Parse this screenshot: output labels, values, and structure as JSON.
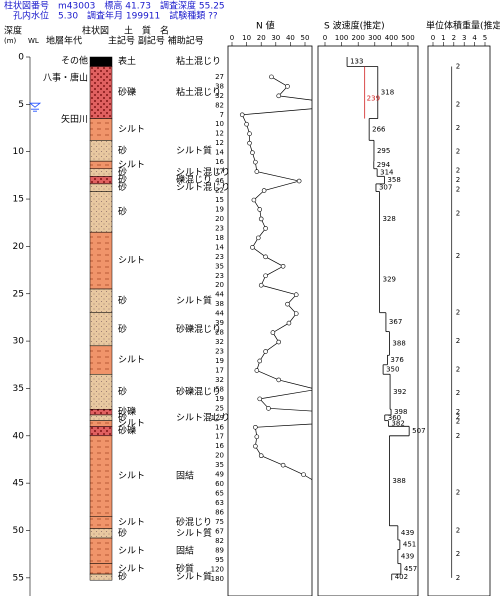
{
  "header": {
    "line1": "柱状図番号　m43003　標高 41.73　調査深度 55.25",
    "line2": "　孔内水位　5.30　調査年月 199911　試験種類 ??"
  },
  "columns": {
    "depth": "深度",
    "unit": "(m)",
    "wl": "WL",
    "age": "地層年代",
    "column": "柱状図",
    "soil": "土　質　名",
    "symbols": "主記号 副記号 補助記号",
    "n": "N 値",
    "vs": "S 波速度(推定)",
    "density": "単位体積重量(推定)"
  },
  "depth_ticks": [
    0,
    5,
    10,
    15,
    20,
    25,
    30,
    35,
    40,
    45,
    50,
    55
  ],
  "water_level": 5.3,
  "formations": [
    {
      "name": "その他",
      "depth": 0.4
    },
    {
      "name": "八事・唐山",
      "depth": 2.2
    },
    {
      "name": "矢田川",
      "depth": 6.6
    }
  ],
  "layers": [
    {
      "top": 0,
      "bottom": 1,
      "pattern": "topsoil",
      "main": "表土",
      "sub": "粘土混じり"
    },
    {
      "top": 1,
      "bottom": 6.5,
      "pattern": "gravel",
      "main": "砂礫",
      "sub": "粘土混じり"
    },
    {
      "top": 6.5,
      "bottom": 8.8,
      "pattern": "silt",
      "main": "シルト",
      "sub": null
    },
    {
      "top": 8.8,
      "bottom": 11,
      "pattern": "sand",
      "main": "砂",
      "sub": "シルト質"
    },
    {
      "top": 11,
      "bottom": 11.8,
      "pattern": "silt",
      "main": "シルト",
      "sub": null
    },
    {
      "top": 11.8,
      "bottom": 12.6,
      "pattern": "sand",
      "main": "砂",
      "sub": "シルト混じり"
    },
    {
      "top": 12.6,
      "bottom": 13.4,
      "pattern": "gravel",
      "main": "砂",
      "sub": "礫混じり"
    },
    {
      "top": 13.4,
      "bottom": 14.2,
      "pattern": "sand",
      "main": "砂",
      "sub": "シルト混じり"
    },
    {
      "top": 14.2,
      "bottom": 18.5,
      "pattern": "sand",
      "main": "砂",
      "sub": null
    },
    {
      "top": 18.5,
      "bottom": 24.5,
      "pattern": "silt",
      "main": "シルト",
      "sub": null
    },
    {
      "top": 24.5,
      "bottom": 27,
      "pattern": "sand",
      "main": "砂",
      "sub": "シルト質"
    },
    {
      "top": 27,
      "bottom": 30.5,
      "pattern": "sand",
      "main": "砂",
      "sub": "砂礫混じり"
    },
    {
      "top": 30.5,
      "bottom": 33.5,
      "pattern": "silt",
      "main": "シルト",
      "sub": null
    },
    {
      "top": 33.5,
      "bottom": 37.2,
      "pattern": "sand",
      "main": "砂",
      "sub": "砂礫混じり"
    },
    {
      "top": 37.2,
      "bottom": 37.8,
      "pattern": "gravel",
      "main": "砂礫",
      "sub": null
    },
    {
      "top": 37.8,
      "bottom": 38.4,
      "pattern": "sand",
      "main": "砂",
      "sub": "シルト混じり"
    },
    {
      "top": 38.4,
      "bottom": 39,
      "pattern": "silt",
      "main": "シルト",
      "sub": null
    },
    {
      "top": 39,
      "bottom": 40,
      "pattern": "gravel",
      "main": "砂礫",
      "sub": null
    },
    {
      "top": 40,
      "bottom": 48.5,
      "pattern": "silt",
      "main": "シルト",
      "sub": "固結"
    },
    {
      "top": 48.5,
      "bottom": 49.8,
      "pattern": "silt",
      "main": "シルト",
      "sub": "砂混じり"
    },
    {
      "top": 49.8,
      "bottom": 50.8,
      "pattern": "sand",
      "main": "砂",
      "sub": "シルト質"
    },
    {
      "top": 50.8,
      "bottom": 53.5,
      "pattern": "silt",
      "main": "シルト",
      "sub": "固結"
    },
    {
      "top": 53.5,
      "bottom": 54.6,
      "pattern": "silt",
      "main": "シルト",
      "sub": "砂質"
    },
    {
      "top": 54.6,
      "bottom": 55.25,
      "pattern": "sand",
      "main": "砂",
      "sub": "シルト質"
    }
  ],
  "n_log": {
    "xlim": [
      0,
      50
    ],
    "xticks": [
      0,
      10,
      20,
      30,
      40,
      50
    ],
    "depths": [
      2.1,
      3.1,
      4.1,
      5.1,
      6.1,
      7.1,
      8.1,
      9.1,
      10.1,
      11.1,
      12.1,
      13.1,
      14.1,
      15.1,
      16.1,
      17.1,
      18.1,
      19.1,
      20.1,
      21.1,
      22.1,
      23.1,
      24.1,
      25.1,
      26.1,
      27.1,
      28.1,
      29.1,
      30.1,
      31.1,
      32.1,
      33.1,
      34.1,
      35.1,
      36.1,
      37.1,
      38.1,
      39.1,
      40.1,
      41.1,
      42.1,
      43.1,
      44.1,
      45.1,
      46.1,
      47.1,
      48.1,
      49.1,
      50.1,
      51.1,
      52.1,
      53.1,
      54.1,
      55.1
    ],
    "values": [
      27,
      38,
      32,
      82,
      7,
      10,
      12,
      12,
      14,
      16,
      17,
      46,
      22,
      15,
      19,
      20,
      23,
      18,
      14,
      23,
      35,
      23,
      20,
      44,
      38,
      44,
      39,
      28,
      32,
      23,
      19,
      17,
      32,
      58,
      19,
      25,
      129,
      16,
      17,
      16,
      20,
      35,
      49,
      60,
      65,
      63,
      86,
      75,
      67,
      82,
      89,
      95,
      120,
      180
    ]
  },
  "vs_log": {
    "xlim": [
      0,
      500
    ],
    "xticks": [
      0,
      100,
      200,
      300,
      400,
      500
    ],
    "tops": [
      0,
      1,
      6.5,
      8.8,
      11,
      11.8,
      12.6,
      13.4,
      14.2,
      20,
      27,
      29,
      31.5,
      32.5,
      33.5,
      37.2,
      37.8,
      38.4,
      39,
      40,
      49.5,
      51,
      52,
      53.5,
      54.6
    ],
    "bottoms": [
      1,
      6.5,
      8.8,
      11,
      11.8,
      12.6,
      13.4,
      14.2,
      20,
      27,
      29,
      31.5,
      32.5,
      33.5,
      37.2,
      37.8,
      38.4,
      39,
      40,
      49.5,
      51,
      52,
      53.5,
      54.6,
      55.25
    ],
    "values": [
      133,
      318,
      266,
      295,
      294,
      314,
      358,
      307,
      328,
      329,
      367,
      388,
      376,
      350,
      392,
      398,
      360,
      382,
      507,
      388,
      439,
      451,
      439,
      457,
      402
    ],
    "estimated": {
      "value": 239,
      "top": 1,
      "bottom": 6.5,
      "color": "#d02020"
    }
  },
  "density": {
    "xlim": [
      0,
      5
    ],
    "xticks": [
      0,
      1,
      2,
      3,
      4,
      5
    ],
    "depths": [
      1,
      5,
      7.5,
      10,
      12,
      13,
      14,
      16.5,
      21,
      27,
      30,
      33,
      35.5,
      37.5,
      38,
      38.5,
      40,
      46,
      50,
      52.5,
      55
    ],
    "values": [
      1.8,
      1.8,
      1.8,
      1.8,
      1.8,
      1.8,
      1.8,
      1.8,
      1.8,
      1.8,
      1.8,
      1.8,
      1.8,
      1.8,
      1.8,
      1.8,
      1.8,
      1.8,
      1.8,
      1.8,
      1.8
    ],
    "value_labels": [
      "2",
      "2",
      "2",
      "2",
      "2",
      "2",
      "2",
      "2",
      "2",
      "2",
      "2",
      "2",
      "2",
      "2",
      "2",
      "2",
      "2",
      "2",
      "2",
      "2",
      "2"
    ]
  }
}
